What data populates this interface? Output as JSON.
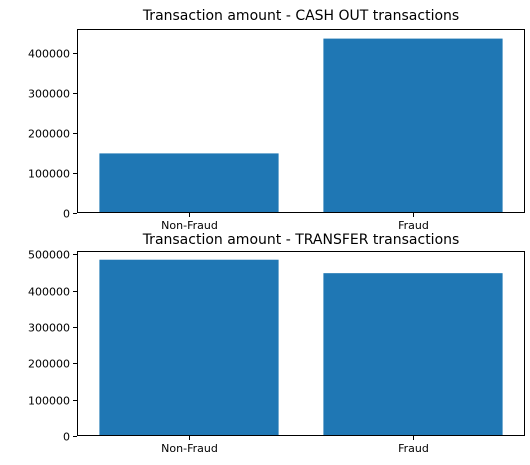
{
  "chart_data": [
    {
      "type": "bar",
      "title": "Transaction amount - CASH OUT transactions",
      "categories": [
        "Non-Fraud",
        "Fraud"
      ],
      "values": [
        149000,
        436000
      ],
      "ylim": [
        0,
        460000
      ],
      "yticks": [
        0,
        100000,
        200000,
        300000,
        400000
      ],
      "ytick_labels": [
        "0",
        "100000",
        "200000",
        "300000",
        "400000"
      ],
      "grid": false,
      "bar_color": "#1f77b4"
    },
    {
      "type": "bar",
      "title": "Transaction amount - TRANSFER transactions",
      "categories": [
        "Non-Fraud",
        "Fraud"
      ],
      "values": [
        485000,
        448000
      ],
      "ylim": [
        0,
        509000
      ],
      "yticks": [
        0,
        100000,
        200000,
        300000,
        400000,
        500000
      ],
      "ytick_labels": [
        "0",
        "100000",
        "200000",
        "300000",
        "400000",
        "500000"
      ],
      "grid": false,
      "bar_color": "#1f77b4"
    }
  ]
}
